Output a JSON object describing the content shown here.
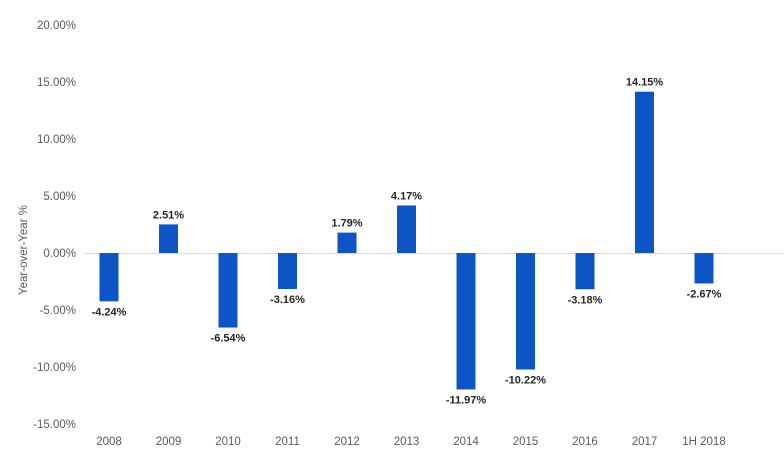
{
  "chart_data": {
    "type": "bar",
    "categories": [
      "2008",
      "2009",
      "2010",
      "2011",
      "2012",
      "2013",
      "2014",
      "2015",
      "2016",
      "2017",
      "1H 2018"
    ],
    "values": [
      -4.24,
      2.51,
      -6.54,
      -3.16,
      1.79,
      4.17,
      -11.97,
      -10.22,
      -3.18,
      14.15,
      -2.67
    ],
    "data_labels": [
      "-4.24%",
      "2.51%",
      "-6.54%",
      "-3.16%",
      "1.79%",
      "4.17%",
      "-11.97%",
      "-10.22%",
      "-3.18%",
      "14.15%",
      "-2.67%"
    ],
    "xlabel": "",
    "ylabel": "Year-over-Year %",
    "ylim": [
      -15,
      20
    ],
    "ytick_values": [
      20,
      15,
      10,
      5,
      0,
      -5,
      -10,
      -15
    ],
    "ytick_labels": [
      "20.00%",
      "15.00%",
      "10.00%",
      "5.00%",
      "0.00%",
      "-5.00%",
      "-10.00%",
      "-15.00%"
    ],
    "grid": false,
    "legend": false,
    "bar_color": "#0D54C6",
    "axis_text_color": "#595959",
    "data_label_color": "#262626",
    "zero_line_color": "#D9D9D9"
  }
}
